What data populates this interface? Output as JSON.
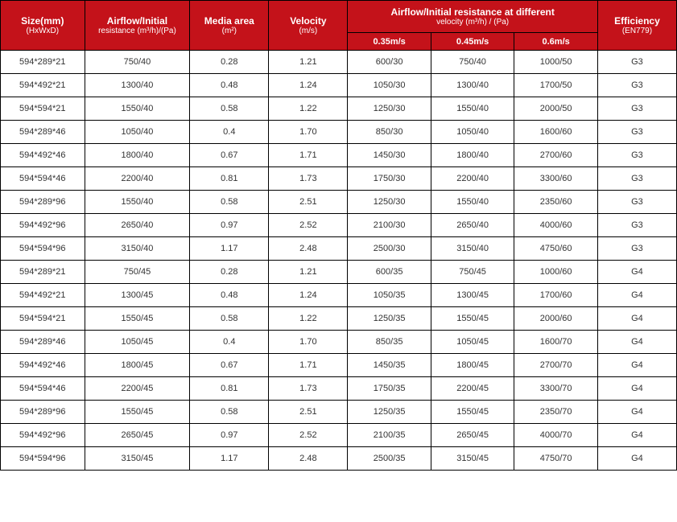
{
  "headers": {
    "size_main": "Size(mm)",
    "size_sub": "(HxWxD)",
    "airflow_main": "Airflow/Initial",
    "airflow_sub": "resistance (m³/h)/(Pa)",
    "media_main": "Media area",
    "media_sub": "(m²)",
    "velocity_main": "Velocity",
    "velocity_sub": "(m/s)",
    "multi_main": "Airflow/Initial resistance at different",
    "multi_sub": "velocity (m³/h) / (Pa)",
    "v1": "0.35m/s",
    "v2": "0.45m/s",
    "v3": "0.6m/s",
    "eff_main": "Efficiency",
    "eff_sub": "(EN779)"
  },
  "rows": [
    {
      "size": "594*289*21",
      "air": "750/40",
      "media": "0.28",
      "vel": "1.21",
      "v1": "600/30",
      "v2": "750/40",
      "v3": "1000/50",
      "eff": "G3"
    },
    {
      "size": "594*492*21",
      "air": "1300/40",
      "media": "0.48",
      "vel": "1.24",
      "v1": "1050/30",
      "v2": "1300/40",
      "v3": "1700/50",
      "eff": "G3"
    },
    {
      "size": "594*594*21",
      "air": "1550/40",
      "media": "0.58",
      "vel": "1.22",
      "v1": "1250/30",
      "v2": "1550/40",
      "v3": "2000/50",
      "eff": "G3"
    },
    {
      "size": "594*289*46",
      "air": "1050/40",
      "media": "0.4",
      "vel": "1.70",
      "v1": "850/30",
      "v2": "1050/40",
      "v3": "1600/60",
      "eff": "G3"
    },
    {
      "size": "594*492*46",
      "air": "1800/40",
      "media": "0.67",
      "vel": "1.71",
      "v1": "1450/30",
      "v2": "1800/40",
      "v3": "2700/60",
      "eff": "G3"
    },
    {
      "size": "594*594*46",
      "air": "2200/40",
      "media": "0.81",
      "vel": "1.73",
      "v1": "1750/30",
      "v2": "2200/40",
      "v3": "3300/60",
      "eff": "G3"
    },
    {
      "size": "594*289*96",
      "air": "1550/40",
      "media": "0.58",
      "vel": "2.51",
      "v1": "1250/30",
      "v2": "1550/40",
      "v3": "2350/60",
      "eff": "G3"
    },
    {
      "size": "594*492*96",
      "air": "2650/40",
      "media": "0.97",
      "vel": "2.52",
      "v1": "2100/30",
      "v2": "2650/40",
      "v3": "4000/60",
      "eff": "G3"
    },
    {
      "size": "594*594*96",
      "air": "3150/40",
      "media": "1.17",
      "vel": "2.48",
      "v1": "2500/30",
      "v2": "3150/40",
      "v3": "4750/60",
      "eff": "G3"
    },
    {
      "size": "594*289*21",
      "air": "750/45",
      "media": "0.28",
      "vel": "1.21",
      "v1": "600/35",
      "v2": "750/45",
      "v3": "1000/60",
      "eff": "G4"
    },
    {
      "size": "594*492*21",
      "air": "1300/45",
      "media": "0.48",
      "vel": "1.24",
      "v1": "1050/35",
      "v2": "1300/45",
      "v3": "1700/60",
      "eff": "G4"
    },
    {
      "size": "594*594*21",
      "air": "1550/45",
      "media": "0.58",
      "vel": "1.22",
      "v1": "1250/35",
      "v2": "1550/45",
      "v3": "2000/60",
      "eff": "G4"
    },
    {
      "size": "594*289*46",
      "air": "1050/45",
      "media": "0.4",
      "vel": "1.70",
      "v1": "850/35",
      "v2": "1050/45",
      "v3": "1600/70",
      "eff": "G4"
    },
    {
      "size": "594*492*46",
      "air": "1800/45",
      "media": "0.67",
      "vel": "1.71",
      "v1": "1450/35",
      "v2": "1800/45",
      "v3": "2700/70",
      "eff": "G4"
    },
    {
      "size": "594*594*46",
      "air": "2200/45",
      "media": "0.81",
      "vel": "1.73",
      "v1": "1750/35",
      "v2": "2200/45",
      "v3": "3300/70",
      "eff": "G4"
    },
    {
      "size": "594*289*96",
      "air": "1550/45",
      "media": "0.58",
      "vel": "2.51",
      "v1": "1250/35",
      "v2": "1550/45",
      "v3": "2350/70",
      "eff": "G4"
    },
    {
      "size": "594*492*96",
      "air": "2650/45",
      "media": "0.97",
      "vel": "2.52",
      "v1": "2100/35",
      "v2": "2650/45",
      "v3": "4000/70",
      "eff": "G4"
    },
    {
      "size": "594*594*96",
      "air": "3150/45",
      "media": "1.17",
      "vel": "2.48",
      "v1": "2500/35",
      "v2": "3150/45",
      "v3": "4750/70",
      "eff": "G4"
    }
  ]
}
